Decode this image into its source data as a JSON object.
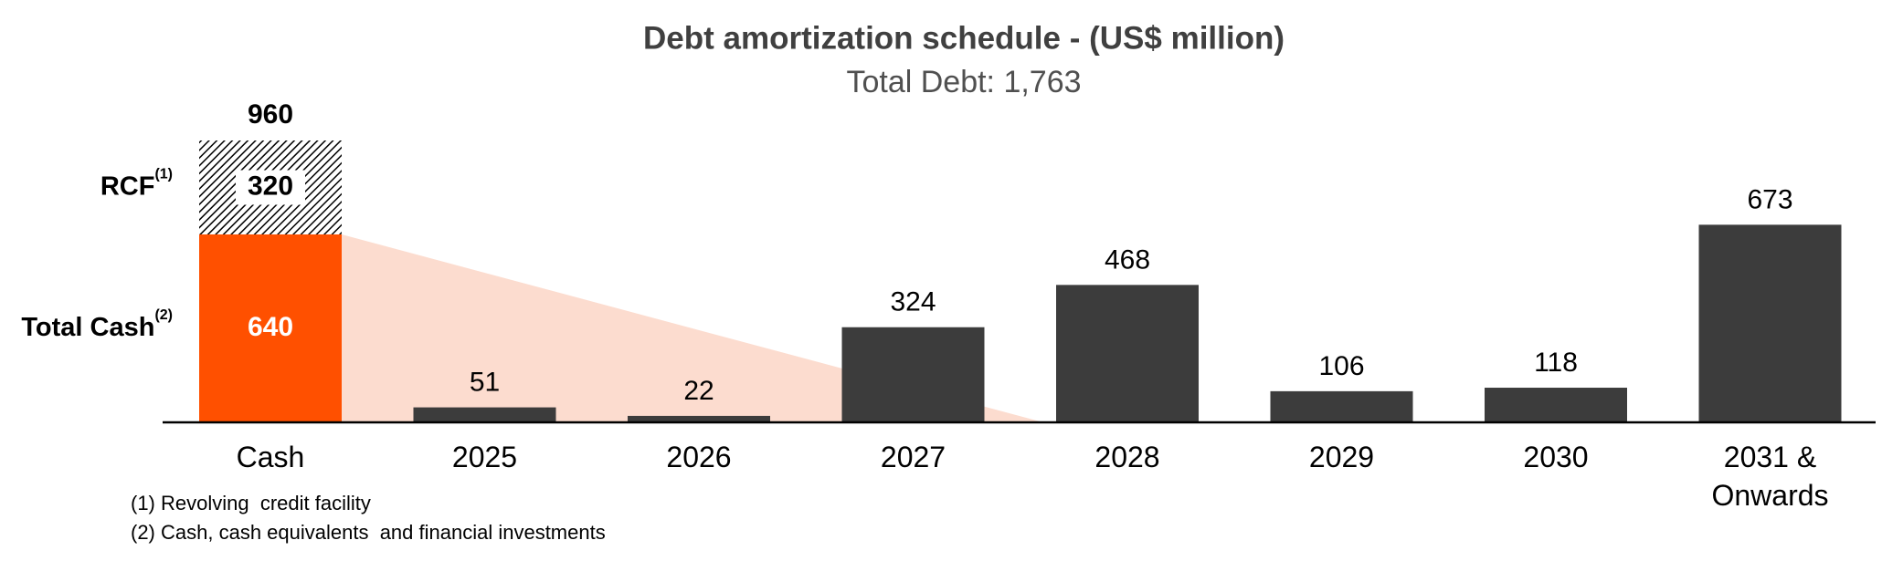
{
  "chart_data": {
    "type": "bar",
    "title": "Debt amortization schedule - (US$ million)",
    "subtitle": "Total Debt: 1,763",
    "categories": [
      "Cash",
      "2025",
      "2026",
      "2027",
      "2028",
      "2029",
      "2030",
      "2031 & Onwards"
    ],
    "series": [
      {
        "name": "Total Cash",
        "superscript": "(2)",
        "color": "#ff5000",
        "values": [
          640,
          null,
          null,
          null,
          null,
          null,
          null,
          null
        ]
      },
      {
        "name": "RCF",
        "superscript": "(1)",
        "color": "#000000",
        "pattern": "hatch",
        "values": [
          320,
          null,
          null,
          null,
          null,
          null,
          null,
          null
        ]
      },
      {
        "color": "#3c3c3c",
        "values": [
          null,
          51,
          22,
          324,
          468,
          106,
          118,
          673
        ]
      }
    ],
    "totals": [
      960,
      null,
      null,
      null,
      null,
      null,
      null,
      null
    ],
    "ylim": [
      0,
      960
    ],
    "footnotes": [
      "(1) Revolving  credit facility",
      "(2) Cash, cash equivalents  and financial investments"
    ]
  }
}
